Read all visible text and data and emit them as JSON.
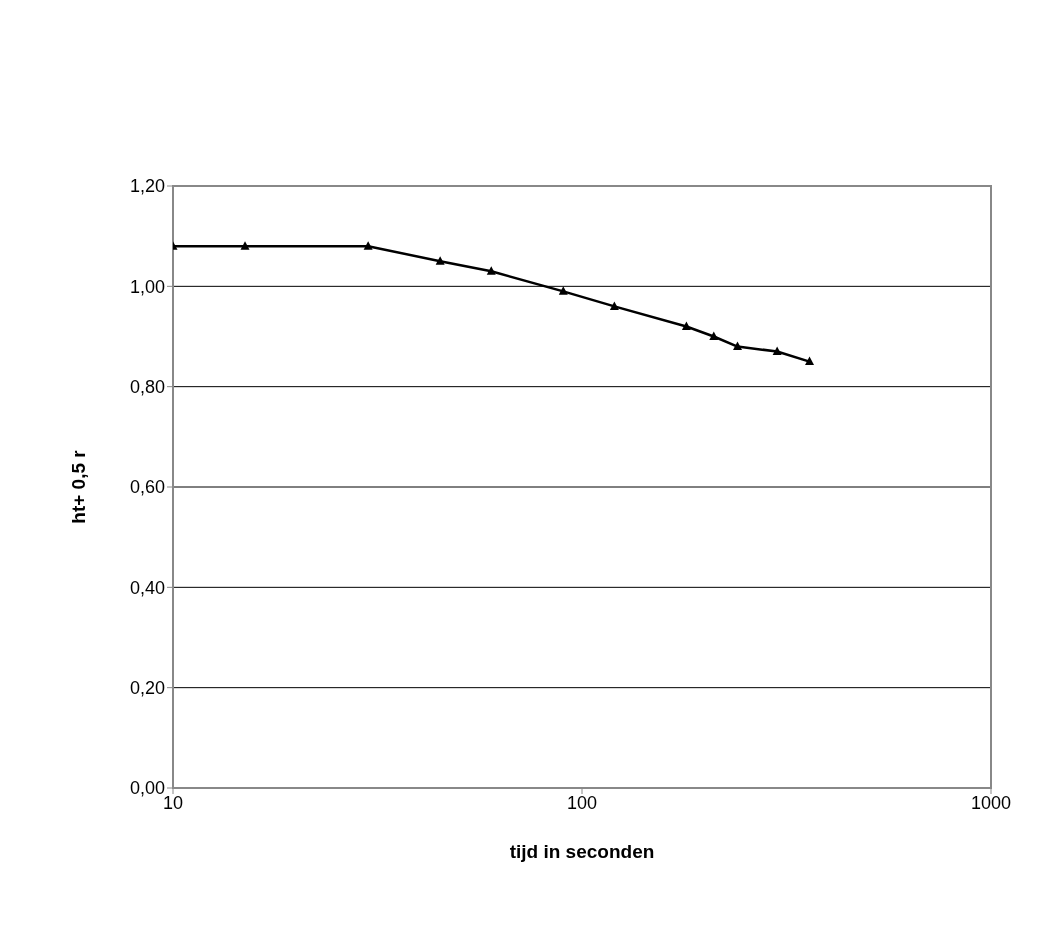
{
  "chart_data": {
    "type": "line",
    "xlabel": "tijd in seconden",
    "ylabel": "ht+ 0,5 r",
    "x": [
      10,
      15,
      30,
      45,
      60,
      90,
      120,
      180,
      210,
      240,
      300,
      360
    ],
    "series": [
      {
        "color": "#000000",
        "values": [
          1.08,
          1.08,
          1.08,
          1.05,
          1.03,
          0.99,
          0.96,
          0.92,
          0.9,
          0.88,
          0.87,
          0.85
        ]
      }
    ],
    "log": "x",
    "xlim": [
      10,
      1000
    ],
    "xticks": [
      10,
      100,
      1000
    ],
    "ylim": [
      0,
      1.2
    ],
    "yticks": [
      {
        "value": 0,
        "label": "0,00"
      },
      {
        "value": 0.2,
        "label": "0,20"
      },
      {
        "value": 0.4,
        "label": "0,40"
      },
      {
        "value": 0.6,
        "label": "0,60"
      },
      {
        "value": 0.8,
        "label": "0,80"
      },
      {
        "value": 1.0,
        "label": "1,00"
      },
      {
        "value": 1.2,
        "label": "1,20"
      }
    ],
    "grid": "y",
    "marker": "triangle",
    "line_style": "solid",
    "legend": false
  }
}
